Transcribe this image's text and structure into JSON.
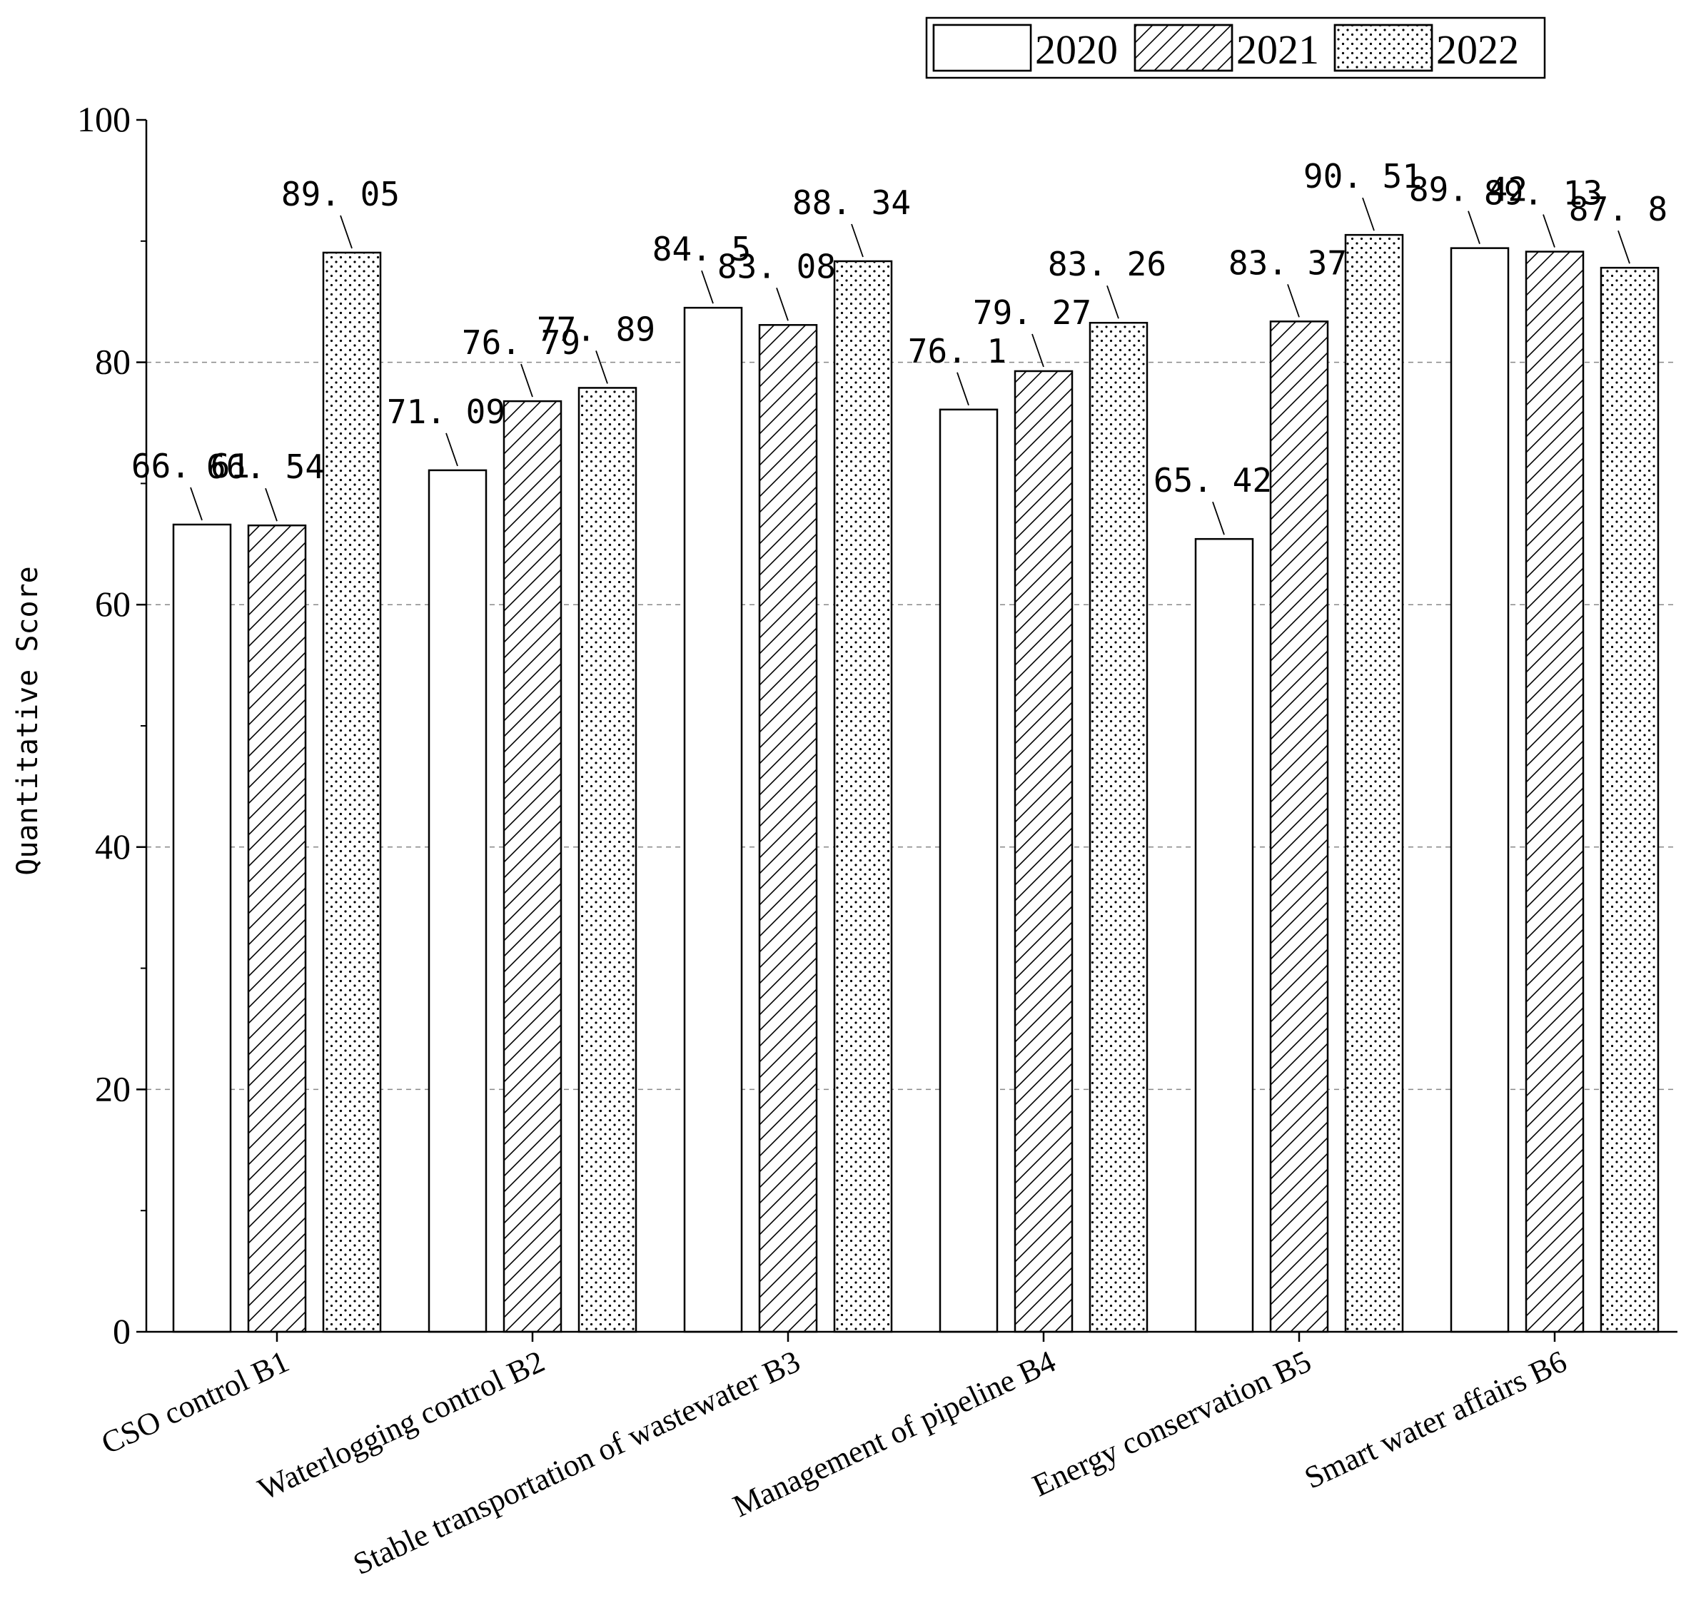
{
  "chart_data": {
    "type": "bar",
    "title": "",
    "xlabel": "",
    "ylabel": "Quantitative Score",
    "ylim": [
      0,
      100
    ],
    "yticks": [
      "0",
      "20",
      "40",
      "60",
      "80",
      "100"
    ],
    "grid": "horizontal dashed",
    "legend_position": "top-right",
    "categories": [
      "CSO control B1",
      "Waterlogging control B2",
      "Stable transportation of wastewater B3",
      "Management of pipeline B4",
      "Energy conservation B5",
      "Smart water affairs B6"
    ],
    "series": [
      {
        "name": "2020",
        "pattern": "blank",
        "values": [
          66.61,
          71.09,
          84.5,
          76.1,
          65.42,
          89.42
        ],
        "labels": [
          "66. 61",
          "71. 09",
          "84. 5",
          "76. 1",
          "65. 42",
          "89. 42"
        ]
      },
      {
        "name": "2021",
        "pattern": "diagonal-hatch",
        "values": [
          66.54,
          76.79,
          83.08,
          79.27,
          83.37,
          89.13
        ],
        "labels": [
          "66. 54",
          "76. 79",
          "83. 08",
          "79. 27",
          "83. 37",
          "89. 13"
        ]
      },
      {
        "name": "2022",
        "pattern": "dots",
        "values": [
          89.05,
          77.89,
          88.34,
          83.26,
          90.51,
          87.8
        ],
        "labels": [
          "89. 05",
          "77. 89",
          "88. 34",
          "83. 26",
          "90. 51",
          "87. 8"
        ]
      }
    ]
  },
  "colors": {
    "bar_stroke": "#000000",
    "bar_fill": "#ffffff",
    "grid": "#888888"
  }
}
